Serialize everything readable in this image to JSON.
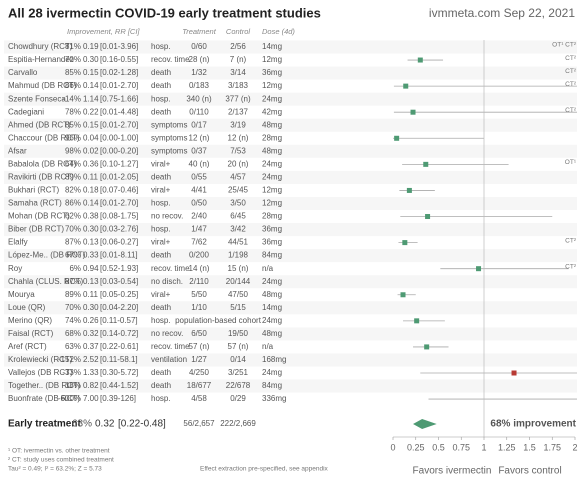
{
  "chart_data": {
    "type": "forest",
    "title": "All 28 ivermectin COVID-19 early treatment studies",
    "source": "ivmmeta.com Sep 22, 2021",
    "headers": {
      "improvement": "Improvement, RR [CI]",
      "treatment": "Treatment",
      "control": "Control",
      "dose": "Dose (4d)"
    },
    "names": [
      "Chowdhury (RCT)",
      "Espitia-Hernandez",
      "Carvallo",
      "Mahmud (DB RCT)",
      "Szente Fonseca",
      "Cadegiani",
      "Ahmed (DB RCT)",
      "Chaccour (DB RCT)",
      "Afsar",
      "Babalola (DB RCT)",
      "Ravikirti (DB RCT)",
      "Bukhari (RCT)",
      "Samaha (RCT)",
      "Mohan (DB RCT)",
      "Biber (DB RCT)",
      "Elalfy",
      "López-Me.. (DB RCT)",
      "Roy",
      "Chahla (CLUS. RCT)",
      "Mourya",
      "Loue (QR)",
      "Merino (QR)",
      "Faisal (RCT)",
      "Aref (RCT)",
      "Krolewiecki (RCT)",
      "Vallejos (DB RCT)",
      "Together.. (DB RCT)",
      "Buonfrate (DB RCT)"
    ],
    "improvement": [
      81,
      70,
      85,
      86,
      -14,
      78,
      85,
      96,
      98,
      64,
      89,
      82,
      86,
      62,
      70,
      87,
      67,
      6,
      87,
      89,
      70,
      74,
      68,
      63,
      -152,
      -33,
      18,
      -600
    ],
    "improvement_labels": [
      "81%",
      "70%",
      "85%",
      "86%",
      "-14%",
      "78%",
      "85%",
      "96%",
      "98%",
      "64%",
      "89%",
      "82%",
      "86%",
      "62%",
      "70%",
      "87%",
      "67%",
      "6%",
      "87%",
      "89%",
      "70%",
      "74%",
      "68%",
      "63%",
      "-152%",
      "-33%",
      "18%",
      "-600%"
    ],
    "values": [
      0.19,
      0.3,
      0.15,
      0.14,
      1.14,
      0.22,
      0.15,
      0.04,
      0.02,
      0.36,
      0.11,
      0.18,
      0.14,
      0.38,
      0.3,
      0.13,
      0.33,
      0.94,
      0.13,
      0.11,
      0.3,
      0.26,
      0.32,
      0.37,
      2.52,
      1.33,
      0.82,
      7.0
    ],
    "value_labels": [
      "0.19",
      "0.30",
      "0.15",
      "0.14",
      "1.14",
      "0.22",
      "0.15",
      "0.04",
      "0.02",
      "0.36",
      "0.11",
      "0.18",
      "0.14",
      "0.38",
      "0.30",
      "0.13",
      "0.33",
      "0.94",
      "0.13",
      "0.11",
      "0.30",
      "0.26",
      "0.32",
      "0.37",
      "2.52",
      "1.33",
      "0.82",
      "7.00"
    ],
    "ci_labels": [
      "[0.01-3.96]",
      "[0.16-0.55]",
      "[0.02-1.28]",
      "[0.01-2.70]",
      "[0.75-1.66]",
      "[0.01-4.48]",
      "[0.01-2.70]",
      "[0.00-1.00]",
      "[0.00-0.20]",
      "[0.10-1.27]",
      "[0.01-2.05]",
      "[0.07-0.46]",
      "[0.01-2.70]",
      "[0.08-1.75]",
      "[0.03-2.76]",
      "[0.06-0.27]",
      "[0.01-8.11]",
      "[0.52-1.93]",
      "[0.03-0.54]",
      "[0.05-0.25]",
      "[0.04-2.20]",
      "[0.11-0.57]",
      "[0.14-0.72]",
      "[0.22-0.61]",
      "[0.11-58.1]",
      "[0.30-5.72]",
      "[0.44-1.52]",
      "[0.39-126]"
    ],
    "lo": [
      0.01,
      0.16,
      0.02,
      0.01,
      0.75,
      0.01,
      0.01,
      0.0,
      0.0,
      0.1,
      0.01,
      0.07,
      0.01,
      0.08,
      0.03,
      0.06,
      0.01,
      0.52,
      0.03,
      0.05,
      0.04,
      0.11,
      0.14,
      0.22,
      0.11,
      0.3,
      0.44,
      0.39
    ],
    "hi": [
      3.96,
      0.55,
      1.28,
      2.7,
      1.66,
      4.48,
      2.7,
      1.0,
      0.2,
      1.27,
      2.05,
      0.46,
      2.7,
      1.75,
      2.76,
      0.27,
      8.11,
      1.93,
      0.54,
      0.25,
      2.2,
      0.57,
      0.72,
      0.61,
      58.1,
      5.72,
      1.52,
      126
    ],
    "outcomes": [
      "hosp.",
      "recov. time",
      "death",
      "death",
      "hosp.",
      "death",
      "symptoms",
      "symptoms",
      "symptoms",
      "viral+",
      "death",
      "viral+",
      "hosp.",
      "no recov.",
      "hosp.",
      "viral+",
      "death",
      "recov. time",
      "no disch.",
      "viral+",
      "death",
      "hosp.",
      "no recov.",
      "recov. time",
      "ventilation",
      "death",
      "death",
      "hosp."
    ],
    "treatment": [
      "0/60",
      "28 (n)",
      "1/32",
      "0/183",
      "340 (n)",
      "0/110",
      "0/17",
      "12 (n)",
      "0/37",
      "40 (n)",
      "0/55",
      "4/41",
      "0/50",
      "2/40",
      "1/47",
      "7/62",
      "0/200",
      "14 (n)",
      "2/110",
      "5/50",
      "1/10",
      "population-based cohort",
      "6/50",
      "57 (n)",
      "1/27",
      "4/250",
      "18/677",
      "4/58"
    ],
    "control": [
      "2/56",
      "7 (n)",
      "3/14",
      "3/183",
      "377 (n)",
      "2/137",
      "3/19",
      "12 (n)",
      "7/53",
      "20 (n)",
      "4/57",
      "25/45",
      "3/50",
      "6/45",
      "3/42",
      "44/51",
      "1/198",
      "15 (n)",
      "20/144",
      "47/50",
      "5/15",
      null,
      "19/50",
      "57 (n)",
      "0/14",
      "3/251",
      "22/678",
      "0/29"
    ],
    "doses": [
      "14mg",
      "12mg",
      "36mg",
      "12mg",
      "24mg",
      "42mg",
      "48mg",
      "28mg",
      "48mg",
      "24mg",
      "24mg",
      "12mg",
      "12mg",
      "28mg",
      "36mg",
      "36mg",
      "84mg",
      "n/a",
      "24mg",
      "48mg",
      "14mg",
      "24mg",
      "48mg",
      "n/a",
      "168mg",
      "24mg",
      "84mg",
      "336mg"
    ],
    "notes": [
      "OT¹ CT²",
      "CT²",
      "CT²",
      "CT²",
      null,
      "CT²",
      null,
      null,
      null,
      "OT¹",
      null,
      null,
      null,
      null,
      null,
      "CT²",
      null,
      "CT²",
      null,
      null,
      null,
      null,
      null,
      null,
      null,
      null,
      null,
      null
    ],
    "summary": {
      "name": "Early treatment",
      "improvement": 68,
      "improvement_label": "68%",
      "value": 0.32,
      "value_label": "0.32",
      "ci_label": "[0.22-0.48]",
      "lo": 0.22,
      "hi": 0.48,
      "treatment": "56/2,657",
      "control": "222/2,669",
      "result": "68% improvement"
    },
    "xlim": [
      0,
      2
    ],
    "xticks": [
      0,
      0.25,
      0.5,
      0.75,
      1,
      1.25,
      1.5,
      1.75,
      2
    ],
    "reference": 1,
    "xlabel_left": "Favors ivermectin",
    "xlabel_right": "Favors control",
    "color": "#4e9a73",
    "color_harm": "#b83a34",
    "footnotes": [
      "¹ OT: ivermectin vs. other treatment",
      "² CT: study uses combined treatment",
      "Tau² = 0.49; I² = 63.2%; Z = 5.73"
    ],
    "effect_note": "Effect extraction pre-specified, see appendix"
  }
}
